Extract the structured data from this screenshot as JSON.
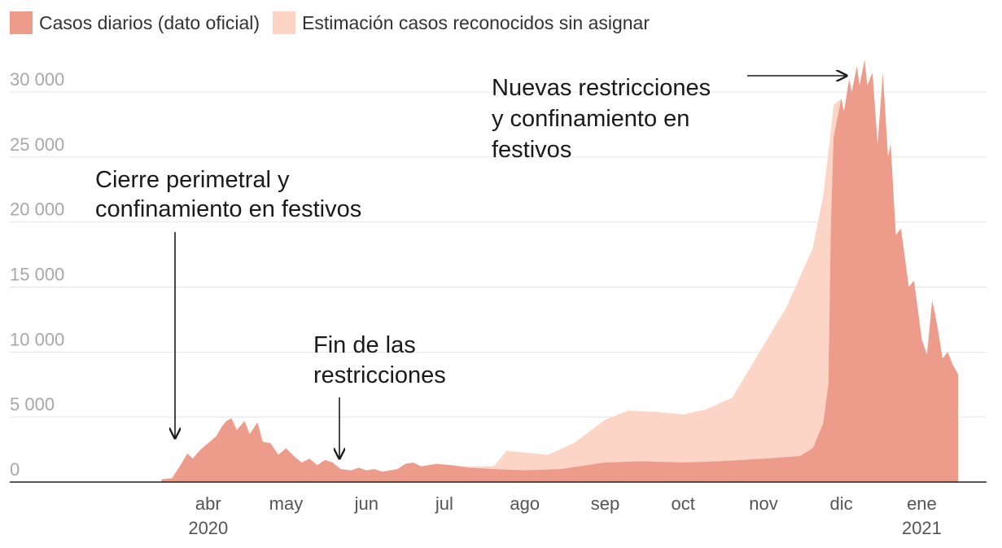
{
  "chart_data": {
    "type": "area",
    "stacked": true,
    "grid": true,
    "legend_position": "top-left",
    "ylim": [
      0,
      33000
    ],
    "y_ticks": [
      0,
      5000,
      10000,
      15000,
      20000,
      25000,
      30000
    ],
    "y_tick_labels": [
      "0",
      "5 000",
      "10 000",
      "15 000",
      "20 000",
      "25 000",
      "30 000"
    ],
    "xlim": [
      "2020-03-01",
      "2021-01-20"
    ],
    "x_ticks": [
      {
        "date": "2020-04-01",
        "label": "abr",
        "sublabel": "2020"
      },
      {
        "date": "2020-05-01",
        "label": "may",
        "sublabel": ""
      },
      {
        "date": "2020-06-01",
        "label": "jun",
        "sublabel": ""
      },
      {
        "date": "2020-07-01",
        "label": "jul",
        "sublabel": ""
      },
      {
        "date": "2020-08-01",
        "label": "ago",
        "sublabel": ""
      },
      {
        "date": "2020-09-01",
        "label": "sep",
        "sublabel": ""
      },
      {
        "date": "2020-10-01",
        "label": "oct",
        "sublabel": ""
      },
      {
        "date": "2020-11-01",
        "label": "nov",
        "sublabel": ""
      },
      {
        "date": "2020-12-01",
        "label": "dic",
        "sublabel": ""
      },
      {
        "date": "2021-01-01",
        "label": "ene",
        "sublabel": "2021"
      }
    ],
    "series": [
      {
        "name": "Casos diarios (dato oficial)",
        "color": "#ed9c8c",
        "points": [
          [
            "2020-03-14",
            200
          ],
          [
            "2020-03-18",
            300
          ],
          [
            "2020-03-21",
            1200
          ],
          [
            "2020-03-24",
            2200
          ],
          [
            "2020-03-26",
            1800
          ],
          [
            "2020-03-29",
            2500
          ],
          [
            "2020-04-01",
            3000
          ],
          [
            "2020-04-04",
            3500
          ],
          [
            "2020-04-06",
            4200
          ],
          [
            "2020-04-08",
            4700
          ],
          [
            "2020-04-10",
            4900
          ],
          [
            "2020-04-12",
            4000
          ],
          [
            "2020-04-15",
            4700
          ],
          [
            "2020-04-17",
            3700
          ],
          [
            "2020-04-20",
            4600
          ],
          [
            "2020-04-22",
            3100
          ],
          [
            "2020-04-25",
            3000
          ],
          [
            "2020-04-28",
            2100
          ],
          [
            "2020-05-01",
            2600
          ],
          [
            "2020-05-04",
            2000
          ],
          [
            "2020-05-07",
            1500
          ],
          [
            "2020-05-10",
            1800
          ],
          [
            "2020-05-13",
            1300
          ],
          [
            "2020-05-16",
            1700
          ],
          [
            "2020-05-19",
            1500
          ],
          [
            "2020-05-22",
            1000
          ],
          [
            "2020-05-26",
            900
          ],
          [
            "2020-05-29",
            1100
          ],
          [
            "2020-06-01",
            900
          ],
          [
            "2020-06-04",
            1000
          ],
          [
            "2020-06-07",
            800
          ],
          [
            "2020-06-10",
            900
          ],
          [
            "2020-06-13",
            1000
          ],
          [
            "2020-06-16",
            1400
          ],
          [
            "2020-06-19",
            1500
          ],
          [
            "2020-06-22",
            1200
          ],
          [
            "2020-06-28",
            1400
          ],
          [
            "2020-07-04",
            1300
          ],
          [
            "2020-07-10",
            1100
          ],
          [
            "2020-07-20",
            1000
          ],
          [
            "2020-08-01",
            900
          ],
          [
            "2020-08-15",
            1000
          ],
          [
            "2020-09-01",
            1500
          ],
          [
            "2020-09-15",
            1600
          ],
          [
            "2020-10-01",
            1500
          ],
          [
            "2020-10-15",
            1600
          ],
          [
            "2020-11-01",
            1800
          ],
          [
            "2020-11-15",
            2000
          ],
          [
            "2020-11-20",
            2600
          ],
          [
            "2020-11-24",
            4500
          ],
          [
            "2020-11-26",
            7500
          ],
          [
            "2020-11-27",
            20000
          ],
          [
            "2020-11-28",
            26500
          ],
          [
            "2020-12-01",
            29500
          ],
          [
            "2020-12-02",
            28500
          ],
          [
            "2020-12-04",
            31000
          ],
          [
            "2020-12-05",
            30000
          ],
          [
            "2020-12-07",
            32000
          ],
          [
            "2020-12-08",
            30500
          ],
          [
            "2020-12-10",
            32500
          ],
          [
            "2020-12-11",
            30500
          ],
          [
            "2020-12-13",
            31500
          ],
          [
            "2020-12-15",
            26000
          ],
          [
            "2020-12-17",
            31500
          ],
          [
            "2020-12-19",
            25000
          ],
          [
            "2020-12-20",
            26000
          ],
          [
            "2020-12-22",
            19000
          ],
          [
            "2020-12-24",
            19500
          ],
          [
            "2020-12-27",
            15000
          ],
          [
            "2020-12-29",
            15500
          ],
          [
            "2021-01-01",
            11000
          ],
          [
            "2021-01-03",
            9800
          ],
          [
            "2021-01-05",
            14000
          ],
          [
            "2021-01-07",
            12000
          ],
          [
            "2021-01-09",
            9500
          ],
          [
            "2021-01-11",
            10000
          ],
          [
            "2021-01-13",
            9000
          ],
          [
            "2021-01-15",
            8300
          ]
        ]
      },
      {
        "name": "Estimación casos reconocidos sin asignar",
        "color": "#fdd5c6",
        "points": [
          [
            "2020-07-01",
            1300
          ],
          [
            "2020-07-10",
            1200
          ],
          [
            "2020-07-20",
            1200
          ],
          [
            "2020-07-25",
            2400
          ],
          [
            "2020-08-10",
            2100
          ],
          [
            "2020-08-20",
            3000
          ],
          [
            "2020-09-01",
            4800
          ],
          [
            "2020-09-10",
            5500
          ],
          [
            "2020-09-20",
            5400
          ],
          [
            "2020-10-01",
            5200
          ],
          [
            "2020-10-10",
            5600
          ],
          [
            "2020-10-20",
            6500
          ],
          [
            "2020-11-01",
            10500
          ],
          [
            "2020-11-10",
            13500
          ],
          [
            "2020-11-20",
            18000
          ],
          [
            "2020-11-24",
            22000
          ],
          [
            "2020-11-27",
            27000
          ],
          [
            "2020-11-28",
            29000
          ],
          [
            "2020-12-01",
            29500
          ]
        ]
      }
    ],
    "annotations": [
      {
        "lines": [
          "Cierre perimetral y",
          "confinamiento en festivos"
        ],
        "arrow_to": [
          "2020-04-04",
          3300
        ]
      },
      {
        "lines": [
          "Fin de las",
          "restricciones"
        ],
        "arrow_to": [
          "2020-06-03",
          1000
        ]
      },
      {
        "lines": [
          "Nuevas restricciones",
          "y confinamiento en",
          "festivos"
        ],
        "arrow_to": [
          "2020-12-04",
          31000
        ]
      }
    ]
  }
}
